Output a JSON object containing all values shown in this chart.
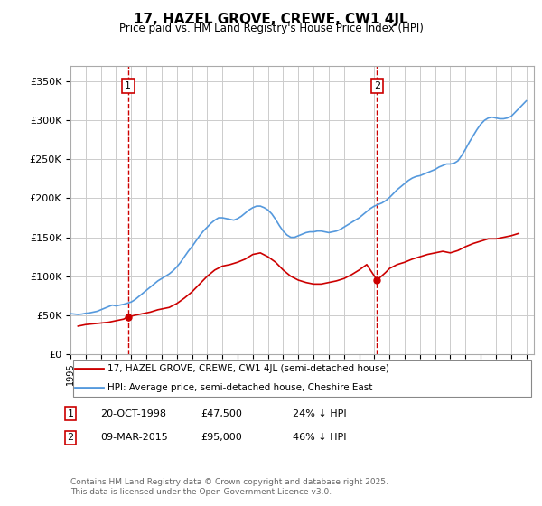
{
  "title": "17, HAZEL GROVE, CREWE, CW1 4JL",
  "subtitle": "Price paid vs. HM Land Registry's House Price Index (HPI)",
  "ylabel_ticks": [
    "£0",
    "£50K",
    "£100K",
    "£150K",
    "£200K",
    "£250K",
    "£300K",
    "£350K"
  ],
  "ytick_values": [
    0,
    50000,
    100000,
    150000,
    200000,
    250000,
    300000,
    350000
  ],
  "ylim": [
    0,
    370000
  ],
  "xlim_start": 1995.0,
  "xlim_end": 2025.5,
  "xtick_years": [
    1995,
    1996,
    1997,
    1998,
    1999,
    2000,
    2001,
    2002,
    2003,
    2004,
    2005,
    2006,
    2007,
    2008,
    2009,
    2010,
    2011,
    2012,
    2013,
    2014,
    2015,
    2016,
    2017,
    2018,
    2019,
    2020,
    2021,
    2022,
    2023,
    2024,
    2025
  ],
  "sale1_x": 1998.79,
  "sale1_y": 47500,
  "sale1_label": "1",
  "sale1_date": "20-OCT-1998",
  "sale1_price": "£47,500",
  "sale1_hpi": "24% ↓ HPI",
  "sale2_x": 2015.18,
  "sale2_y": 95000,
  "sale2_label": "2",
  "sale2_date": "09-MAR-2015",
  "sale2_price": "£95,000",
  "sale2_hpi": "46% ↓ HPI",
  "vline_color": "#cc0000",
  "vline_style": "--",
  "hpi_color": "#5599dd",
  "price_color": "#cc0000",
  "background_color": "#ffffff",
  "grid_color": "#cccccc",
  "legend1_label": "17, HAZEL GROVE, CREWE, CW1 4JL (semi-detached house)",
  "legend2_label": "HPI: Average price, semi-detached house, Cheshire East",
  "footer": "Contains HM Land Registry data © Crown copyright and database right 2025.\nThis data is licensed under the Open Government Licence v3.0.",
  "hpi_data_x": [
    1995.0,
    1995.25,
    1995.5,
    1995.75,
    1996.0,
    1996.25,
    1996.5,
    1996.75,
    1997.0,
    1997.25,
    1997.5,
    1997.75,
    1998.0,
    1998.25,
    1998.5,
    1998.75,
    1999.0,
    1999.25,
    1999.5,
    1999.75,
    2000.0,
    2000.25,
    2000.5,
    2000.75,
    2001.0,
    2001.25,
    2001.5,
    2001.75,
    2002.0,
    2002.25,
    2002.5,
    2002.75,
    2003.0,
    2003.25,
    2003.5,
    2003.75,
    2004.0,
    2004.25,
    2004.5,
    2004.75,
    2005.0,
    2005.25,
    2005.5,
    2005.75,
    2006.0,
    2006.25,
    2006.5,
    2006.75,
    2007.0,
    2007.25,
    2007.5,
    2007.75,
    2008.0,
    2008.25,
    2008.5,
    2008.75,
    2009.0,
    2009.25,
    2009.5,
    2009.75,
    2010.0,
    2010.25,
    2010.5,
    2010.75,
    2011.0,
    2011.25,
    2011.5,
    2011.75,
    2012.0,
    2012.25,
    2012.5,
    2012.75,
    2013.0,
    2013.25,
    2013.5,
    2013.75,
    2014.0,
    2014.25,
    2014.5,
    2014.75,
    2015.0,
    2015.25,
    2015.5,
    2015.75,
    2016.0,
    2016.25,
    2016.5,
    2016.75,
    2017.0,
    2017.25,
    2017.5,
    2017.75,
    2018.0,
    2018.25,
    2018.5,
    2018.75,
    2019.0,
    2019.25,
    2019.5,
    2019.75,
    2020.0,
    2020.25,
    2020.5,
    2020.75,
    2021.0,
    2021.25,
    2021.5,
    2021.75,
    2022.0,
    2022.25,
    2022.5,
    2022.75,
    2023.0,
    2023.25,
    2023.5,
    2023.75,
    2024.0,
    2024.25,
    2024.5,
    2024.75,
    2025.0
  ],
  "hpi_data_y": [
    52000,
    51500,
    51000,
    51500,
    52500,
    53000,
    54000,
    55000,
    57000,
    59000,
    61000,
    63000,
    62000,
    63000,
    64000,
    65500,
    67000,
    70000,
    74000,
    78000,
    82000,
    86000,
    90000,
    94000,
    97000,
    100000,
    103000,
    107000,
    112000,
    118000,
    125000,
    132000,
    138000,
    145000,
    152000,
    158000,
    163000,
    168000,
    172000,
    175000,
    175000,
    174000,
    173000,
    172000,
    174000,
    177000,
    181000,
    185000,
    188000,
    190000,
    190000,
    188000,
    185000,
    180000,
    173000,
    165000,
    158000,
    153000,
    150000,
    150000,
    152000,
    154000,
    156000,
    157000,
    157000,
    158000,
    158000,
    157000,
    156000,
    157000,
    158000,
    160000,
    163000,
    166000,
    169000,
    172000,
    175000,
    179000,
    183000,
    187000,
    190000,
    192000,
    194000,
    197000,
    201000,
    206000,
    211000,
    215000,
    219000,
    223000,
    226000,
    228000,
    229000,
    231000,
    233000,
    235000,
    237000,
    240000,
    242000,
    244000,
    244000,
    245000,
    248000,
    255000,
    263000,
    272000,
    280000,
    288000,
    295000,
    300000,
    303000,
    304000,
    303000,
    302000,
    302000,
    303000,
    305000,
    310000,
    315000,
    320000,
    325000
  ],
  "price_data_x": [
    1995.5,
    1996.0,
    1996.5,
    1997.0,
    1997.5,
    1997.75,
    1998.0,
    1998.25,
    1998.5,
    1998.75,
    1999.25,
    1999.75,
    2000.25,
    2000.75,
    2001.5,
    2002.0,
    2002.5,
    2003.0,
    2003.5,
    2004.0,
    2004.5,
    2005.0,
    2005.5,
    2006.0,
    2006.5,
    2007.0,
    2007.5,
    2008.0,
    2008.5,
    2009.0,
    2009.5,
    2010.0,
    2010.5,
    2011.0,
    2011.5,
    2012.0,
    2012.5,
    2013.0,
    2013.5,
    2014.0,
    2014.5,
    2015.18,
    2015.75,
    2016.0,
    2016.5,
    2017.0,
    2017.5,
    2018.0,
    2018.5,
    2019.0,
    2019.5,
    2020.0,
    2020.5,
    2021.0,
    2021.5,
    2022.0,
    2022.5,
    2023.0,
    2023.5,
    2024.0,
    2024.5
  ],
  "price_data_y": [
    36000,
    38000,
    39000,
    40000,
    41000,
    42000,
    43000,
    44000,
    45000,
    47500,
    50000,
    52000,
    54000,
    57000,
    60000,
    65000,
    72000,
    80000,
    90000,
    100000,
    108000,
    113000,
    115000,
    118000,
    122000,
    128000,
    130000,
    125000,
    118000,
    108000,
    100000,
    95000,
    92000,
    90000,
    90000,
    92000,
    94000,
    97000,
    102000,
    108000,
    115000,
    95000,
    105000,
    110000,
    115000,
    118000,
    122000,
    125000,
    128000,
    130000,
    132000,
    130000,
    133000,
    138000,
    142000,
    145000,
    148000,
    148000,
    150000,
    152000,
    155000
  ]
}
